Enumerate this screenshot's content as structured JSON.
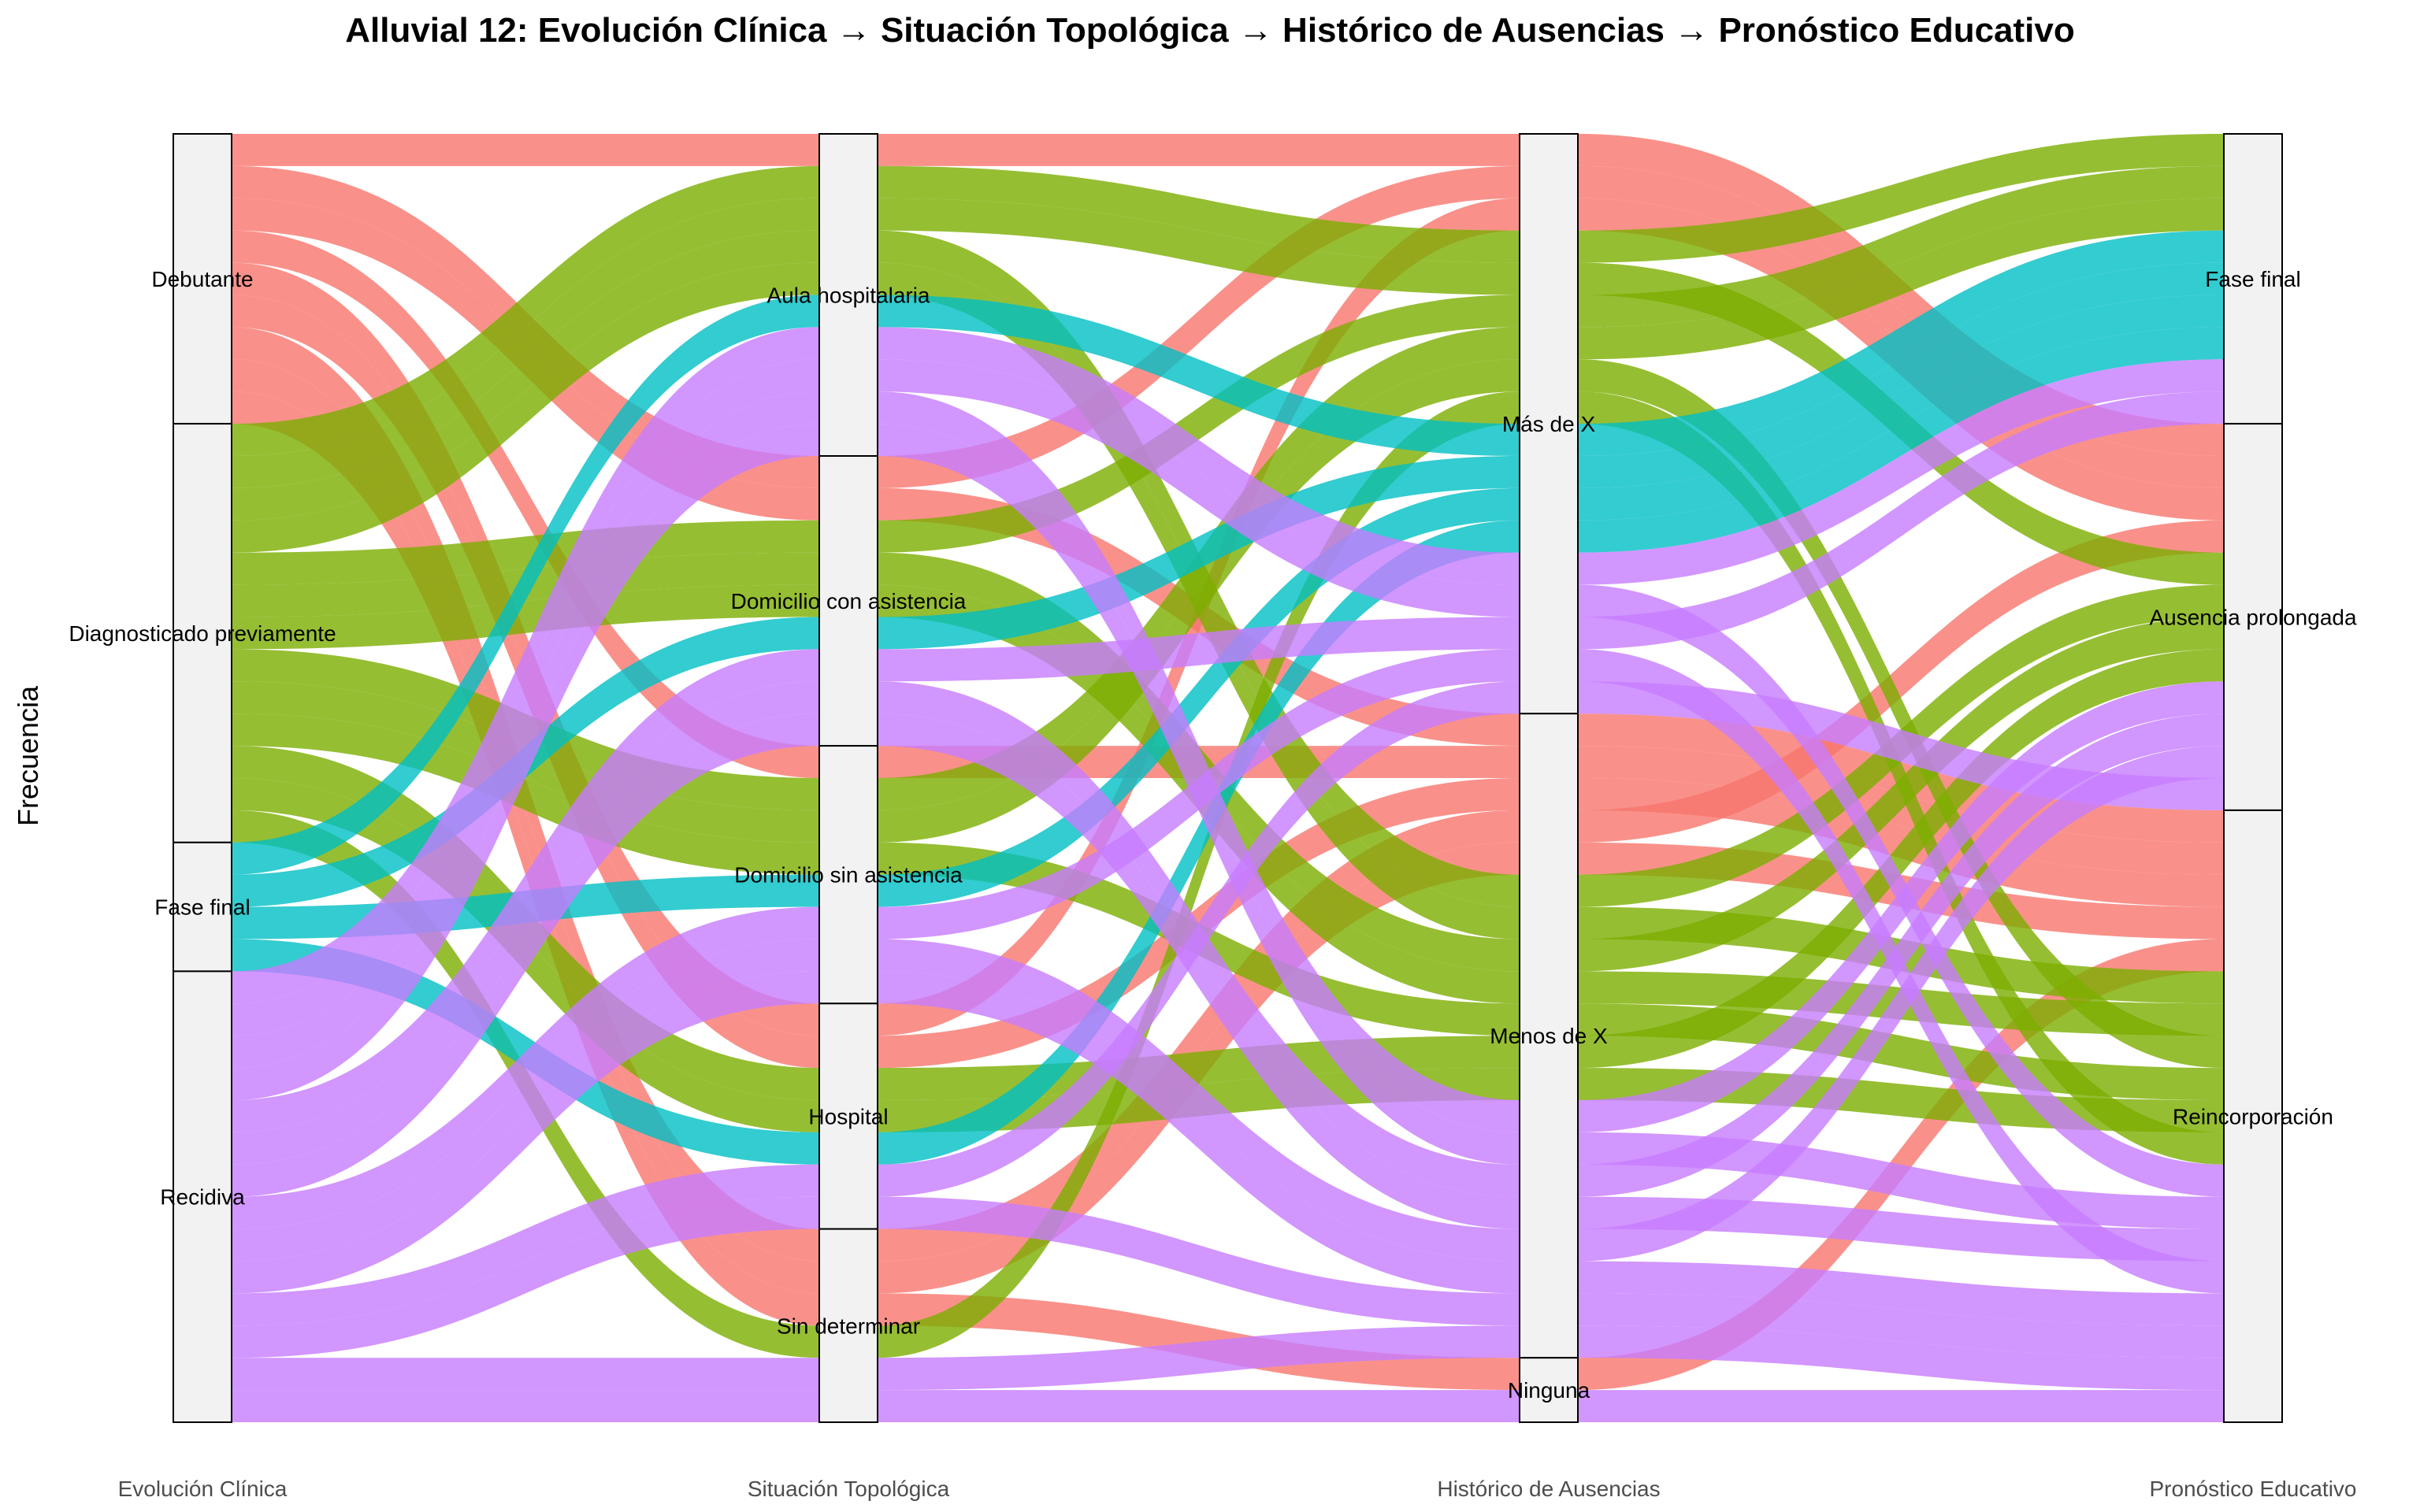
{
  "chart_data": {
    "type": "alluvial",
    "title": "Alluvial 12: Evolución Clínica → Situación Topológica → Histórico de Ausencias → Pronóstico Educativo",
    "ylabel": "Frecuencia",
    "axes": [
      "Evolución Clínica",
      "Situación Topológica",
      "Histórico de Ausencias",
      "Pronóstico Educativo"
    ],
    "axis_strata": [
      [
        "Debutante",
        "Diagnosticado previamente",
        "Fase final",
        "Recidiva"
      ],
      [
        "Aula hospitalaria",
        "Domicilio con asistencia",
        "Domicilio sin asistencia",
        "Hospital",
        "Sin determinar"
      ],
      [
        "Más de X",
        "Menos de X",
        "Ninguna"
      ],
      [
        "Fase final",
        "Ausencia prolongada",
        "Reincorporación"
      ]
    ],
    "fill_by": "Evolución Clínica",
    "colors": {
      "Debutante": "#F8766D",
      "Diagnosticado previamente": "#7CAE00",
      "Fase final": "#00BFC4",
      "Recidiva": "#C77CFF"
    },
    "stratum_fill": "#f2f2f2",
    "flows": [
      {
        "path": [
          "Debutante",
          "Aula hospitalaria",
          "Más de X",
          "Ausencia prolongada"
        ],
        "value": 1
      },
      {
        "path": [
          "Debutante",
          "Domicilio con asistencia",
          "Menos de X",
          "Reincorporación"
        ],
        "value": 1
      },
      {
        "path": [
          "Debutante",
          "Domicilio con asistencia",
          "Más de X",
          "Ausencia prolongada"
        ],
        "value": 1
      },
      {
        "path": [
          "Debutante",
          "Domicilio sin asistencia",
          "Menos de X",
          "Reincorporación"
        ],
        "value": 1
      },
      {
        "path": [
          "Debutante",
          "Hospital",
          "Más de X",
          "Ausencia prolongada"
        ],
        "value": 1
      },
      {
        "path": [
          "Debutante",
          "Hospital",
          "Menos de X",
          "Reincorporación"
        ],
        "value": 1
      },
      {
        "path": [
          "Debutante",
          "Sin determinar",
          "Menos de X",
          "Reincorporación"
        ],
        "value": 1
      },
      {
        "path": [
          "Debutante",
          "Sin determinar",
          "Menos de X",
          "Ausencia prolongada"
        ],
        "value": 1
      },
      {
        "path": [
          "Debutante",
          "Sin determinar",
          "Ninguna",
          "Reincorporación"
        ],
        "value": 1
      },
      {
        "path": [
          "Diagnosticado previamente",
          "Aula hospitalaria",
          "Más de X",
          "Fase final"
        ],
        "value": 1
      },
      {
        "path": [
          "Diagnosticado previamente",
          "Aula hospitalaria",
          "Menos de X",
          "Reincorporación"
        ],
        "value": 1
      },
      {
        "path": [
          "Diagnosticado previamente",
          "Aula hospitalaria",
          "Más de X",
          "Ausencia prolongada"
        ],
        "value": 1
      },
      {
        "path": [
          "Diagnosticado previamente",
          "Aula hospitalaria",
          "Menos de X",
          "Ausencia prolongada"
        ],
        "value": 1
      },
      {
        "path": [
          "Diagnosticado previamente",
          "Domicilio con asistencia",
          "Más de X",
          "Fase final"
        ],
        "value": 1
      },
      {
        "path": [
          "Diagnosticado previamente",
          "Domicilio con asistencia",
          "Menos de X",
          "Reincorporación"
        ],
        "value": 1
      },
      {
        "path": [
          "Diagnosticado previamente",
          "Domicilio con asistencia",
          "Menos de X",
          "Ausencia prolongada"
        ],
        "value": 1
      },
      {
        "path": [
          "Diagnosticado previamente",
          "Domicilio sin asistencia",
          "Más de X",
          "Fase final"
        ],
        "value": 1
      },
      {
        "path": [
          "Diagnosticado previamente",
          "Domicilio sin asistencia",
          "Menos de X",
          "Reincorporación"
        ],
        "value": 1
      },
      {
        "path": [
          "Diagnosticado previamente",
          "Domicilio sin asistencia",
          "Más de X",
          "Reincorporación"
        ],
        "value": 1
      },
      {
        "path": [
          "Diagnosticado previamente",
          "Hospital",
          "Menos de X",
          "Reincorporación"
        ],
        "value": 1
      },
      {
        "path": [
          "Diagnosticado previamente",
          "Hospital",
          "Menos de X",
          "Ausencia prolongada"
        ],
        "value": 1
      },
      {
        "path": [
          "Diagnosticado previamente",
          "Sin determinar",
          "Más de X",
          "Reincorporación"
        ],
        "value": 1
      },
      {
        "path": [
          "Fase final",
          "Aula hospitalaria",
          "Más de X",
          "Fase final"
        ],
        "value": 1
      },
      {
        "path": [
          "Fase final",
          "Domicilio con asistencia",
          "Más de X",
          "Fase final"
        ],
        "value": 1
      },
      {
        "path": [
          "Fase final",
          "Domicilio sin asistencia",
          "Más de X",
          "Fase final"
        ],
        "value": 1
      },
      {
        "path": [
          "Fase final",
          "Hospital",
          "Más de X",
          "Fase final"
        ],
        "value": 1
      },
      {
        "path": [
          "Recidiva",
          "Aula hospitalaria",
          "Más de X",
          "Fase final"
        ],
        "value": 1
      },
      {
        "path": [
          "Recidiva",
          "Aula hospitalaria",
          "Más de X",
          "Reincorporación"
        ],
        "value": 1
      },
      {
        "path": [
          "Recidiva",
          "Aula hospitalaria",
          "Menos de X",
          "Reincorporación"
        ],
        "value": 1
      },
      {
        "path": [
          "Recidiva",
          "Aula hospitalaria",
          "Menos de X",
          "Ausencia prolongada"
        ],
        "value": 1
      },
      {
        "path": [
          "Recidiva",
          "Domicilio con asistencia",
          "Más de X",
          "Fase final"
        ],
        "value": 1
      },
      {
        "path": [
          "Recidiva",
          "Domicilio con asistencia",
          "Menos de X",
          "Reincorporación"
        ],
        "value": 1
      },
      {
        "path": [
          "Recidiva",
          "Domicilio con asistencia",
          "Menos de X",
          "Ausencia prolongada"
        ],
        "value": 1
      },
      {
        "path": [
          "Recidiva",
          "Domicilio sin asistencia",
          "Más de X",
          "Reincorporación"
        ],
        "value": 1
      },
      {
        "path": [
          "Recidiva",
          "Domicilio sin asistencia",
          "Menos de X",
          "Reincorporación"
        ],
        "value": 1
      },
      {
        "path": [
          "Recidiva",
          "Domicilio sin asistencia",
          "Menos de X",
          "Ausencia prolongada"
        ],
        "value": 1
      },
      {
        "path": [
          "Recidiva",
          "Hospital",
          "Más de X",
          "Ausencia prolongada"
        ],
        "value": 1
      },
      {
        "path": [
          "Recidiva",
          "Hospital",
          "Menos de X",
          "Reincorporación"
        ],
        "value": 1
      },
      {
        "path": [
          "Recidiva",
          "Sin determinar",
          "Menos de X",
          "Reincorporación"
        ],
        "value": 1
      },
      {
        "path": [
          "Recidiva",
          "Sin determinar",
          "Ninguna",
          "Reincorporación"
        ],
        "value": 1
      }
    ]
  }
}
